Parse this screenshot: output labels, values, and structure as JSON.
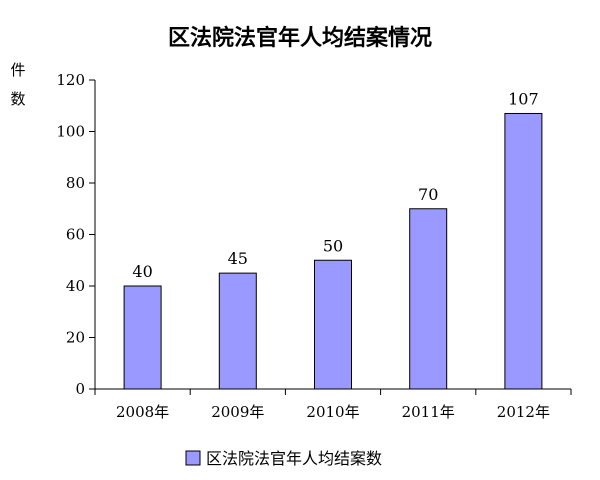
{
  "chart_data": {
    "type": "bar",
    "title": "区法院法官年人均结案情况",
    "ylabel": "件数",
    "ylabel_chars": [
      "件",
      "数"
    ],
    "categories": [
      "2008年",
      "2009年",
      "2010年",
      "2011年",
      "2012年"
    ],
    "series": [
      {
        "name": "区法院法官年人均结案数",
        "values": [
          40,
          45,
          50,
          70,
          107
        ],
        "color": "#9999ff"
      }
    ],
    "ylim": [
      0,
      120
    ],
    "yticks": [
      0,
      20,
      40,
      60,
      80,
      100,
      120
    ],
    "grid": false,
    "legend": "bottom"
  }
}
